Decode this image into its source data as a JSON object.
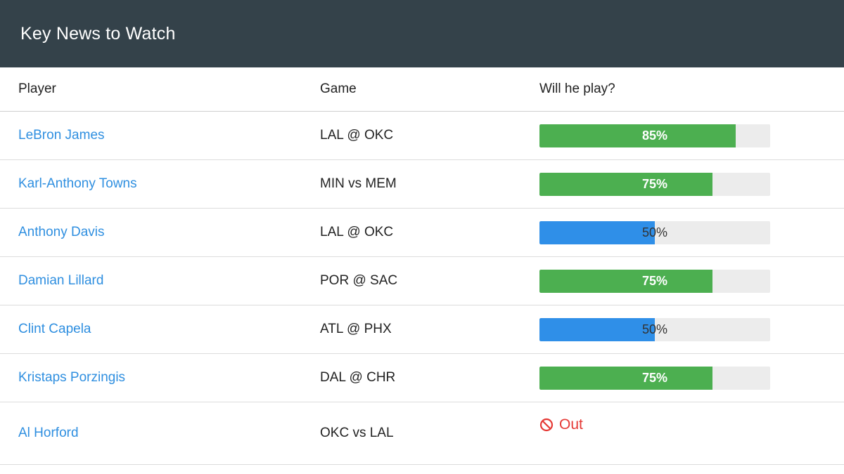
{
  "header": {
    "title": "Key News to Watch"
  },
  "table": {
    "columns": [
      "Player",
      "Game",
      "Will he play?"
    ],
    "rows": [
      {
        "player": "LeBron James",
        "game": "LAL @ OKC",
        "status": "bar",
        "percent": 85,
        "label": "85%",
        "level": "good"
      },
      {
        "player": "Karl-Anthony Towns",
        "game": "MIN vs MEM",
        "status": "bar",
        "percent": 75,
        "label": "75%",
        "level": "good"
      },
      {
        "player": "Anthony Davis",
        "game": "LAL @ OKC",
        "status": "bar",
        "percent": 50,
        "label": "50%",
        "level": "mid"
      },
      {
        "player": "Damian Lillard",
        "game": "POR @ SAC",
        "status": "bar",
        "percent": 75,
        "label": "75%",
        "level": "good"
      },
      {
        "player": "Clint Capela",
        "game": "ATL @ PHX",
        "status": "bar",
        "percent": 50,
        "label": "50%",
        "level": "mid"
      },
      {
        "player": "Kristaps Porzingis",
        "game": "DAL @ CHR",
        "status": "bar",
        "percent": 75,
        "label": "75%",
        "level": "good"
      },
      {
        "player": "Al Horford",
        "game": "OKC vs LAL",
        "status": "out",
        "label": "Out",
        "icon": "no-entry-icon"
      }
    ]
  },
  "colors": {
    "header_bg": "#34424a",
    "link": "#2f8fe0",
    "good": "#4caf50",
    "mid": "#2f8fe8",
    "out": "#e53935",
    "track": "#ececec"
  }
}
